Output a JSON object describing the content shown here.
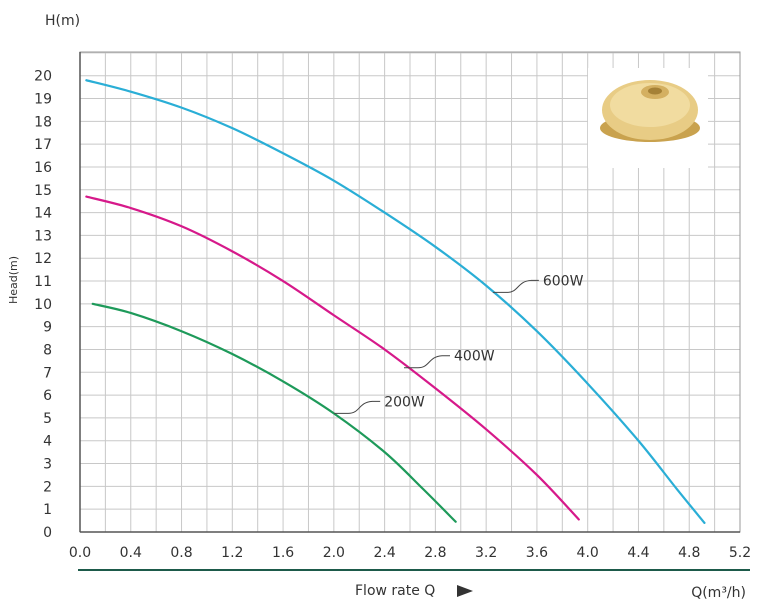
{
  "chart_data": {
    "type": "line",
    "ylabel_top": "H(m)",
    "ylabel_side": "Head(m)",
    "xlabel": "Flow rate Q",
    "xunit": "Q(m³/h)",
    "xlim": [
      0,
      5.2
    ],
    "ylim": [
      0,
      21
    ],
    "grid": true,
    "x_ticks": [
      "0.0",
      "0.4",
      "0.8",
      "1.2",
      "1.6",
      "2.0",
      "2.4",
      "2.8",
      "3.2",
      "3.6",
      "4.0",
      "4.4",
      "4.8",
      "5.2"
    ],
    "y_ticks": [
      "0",
      "1",
      "2",
      "3",
      "4",
      "5",
      "6",
      "7",
      "8",
      "9",
      "10",
      "11",
      "12",
      "13",
      "14",
      "15",
      "16",
      "17",
      "18",
      "19",
      "20"
    ],
    "series": [
      {
        "name": "600W",
        "color": "#2aaed6",
        "points": [
          [
            0.05,
            19.8
          ],
          [
            0.4,
            19.3
          ],
          [
            0.8,
            18.6
          ],
          [
            1.2,
            17.7
          ],
          [
            1.6,
            16.6
          ],
          [
            2.0,
            15.4
          ],
          [
            2.4,
            14.0
          ],
          [
            2.8,
            12.5
          ],
          [
            3.2,
            10.8
          ],
          [
            3.6,
            8.8
          ],
          [
            4.0,
            6.5
          ],
          [
            4.4,
            4.0
          ],
          [
            4.7,
            1.9
          ],
          [
            4.92,
            0.4
          ]
        ],
        "label_at": [
          3.3,
          10.5
        ]
      },
      {
        "name": "400W",
        "color": "#d6198a",
        "points": [
          [
            0.05,
            14.7
          ],
          [
            0.4,
            14.2
          ],
          [
            0.8,
            13.4
          ],
          [
            1.2,
            12.3
          ],
          [
            1.6,
            11.0
          ],
          [
            2.0,
            9.5
          ],
          [
            2.4,
            8.0
          ],
          [
            2.8,
            6.3
          ],
          [
            3.2,
            4.5
          ],
          [
            3.6,
            2.5
          ],
          [
            3.93,
            0.55
          ]
        ],
        "label_at": [
          2.6,
          7.2
        ]
      },
      {
        "name": "200W",
        "color": "#1e9a5a",
        "points": [
          [
            0.1,
            10.0
          ],
          [
            0.4,
            9.6
          ],
          [
            0.8,
            8.8
          ],
          [
            1.2,
            7.8
          ],
          [
            1.6,
            6.6
          ],
          [
            2.0,
            5.2
          ],
          [
            2.4,
            3.5
          ],
          [
            2.7,
            1.9
          ],
          [
            2.96,
            0.45
          ]
        ],
        "label_at": [
          2.05,
          5.2
        ]
      }
    ]
  }
}
